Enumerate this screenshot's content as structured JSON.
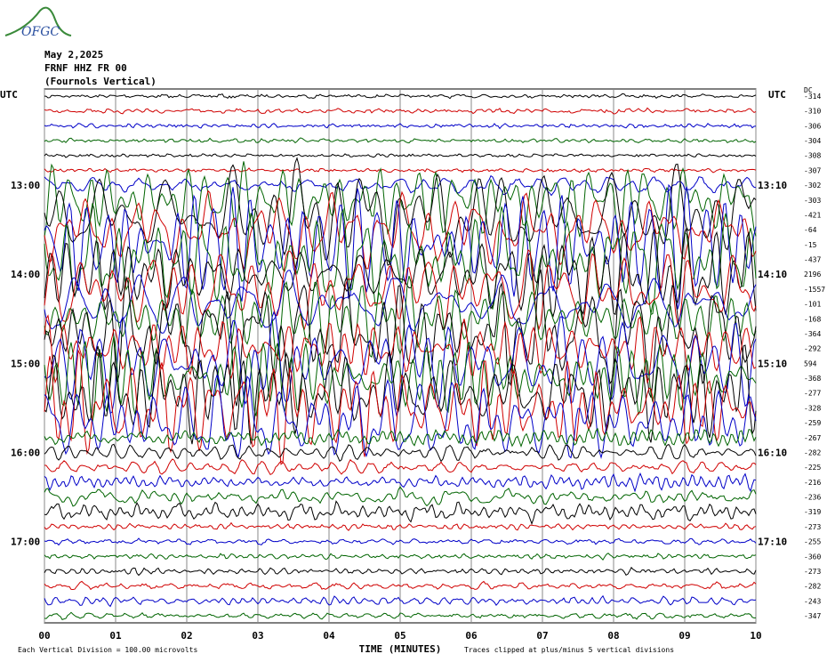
{
  "header": {
    "logo": "OFGC",
    "date": "May 2,2025",
    "station": "FRNF HHZ FR 00",
    "location": "(Fournols Vertical)"
  },
  "axis": {
    "left_label": "UTC",
    "right_label": "UTC",
    "dc_label": "DC",
    "left_times": [
      "13:00",
      "14:00",
      "15:00",
      "16:00",
      "17:00"
    ],
    "right_times": [
      "13:10",
      "14:10",
      "15:10",
      "16:10",
      "17:10"
    ],
    "x_ticks": [
      "00",
      "01",
      "02",
      "03",
      "04",
      "05",
      "06",
      "07",
      "08",
      "09",
      "10"
    ],
    "x_title": "TIME (MINUTES)"
  },
  "trace_colors": [
    "#000000",
    "#d00000",
    "#0000c8",
    "#006400"
  ],
  "dc_offsets": [
    -314,
    -310,
    -306,
    -304,
    -308,
    -307,
    -302,
    -303,
    -421,
    -64,
    -15,
    -437,
    2196,
    -1557,
    -101,
    -168,
    -364,
    -292,
    594,
    -368,
    -277,
    -328,
    -259,
    -267,
    -282,
    -225,
    -216,
    -236,
    -319,
    -273,
    -255,
    -360,
    -273,
    -282,
    -243,
    -347
  ],
  "footer": {
    "division": "Each Vertical Division =  100.00 microvolts",
    "clip": "Traces clipped at plus/minus 5 vertical divisions"
  }
}
